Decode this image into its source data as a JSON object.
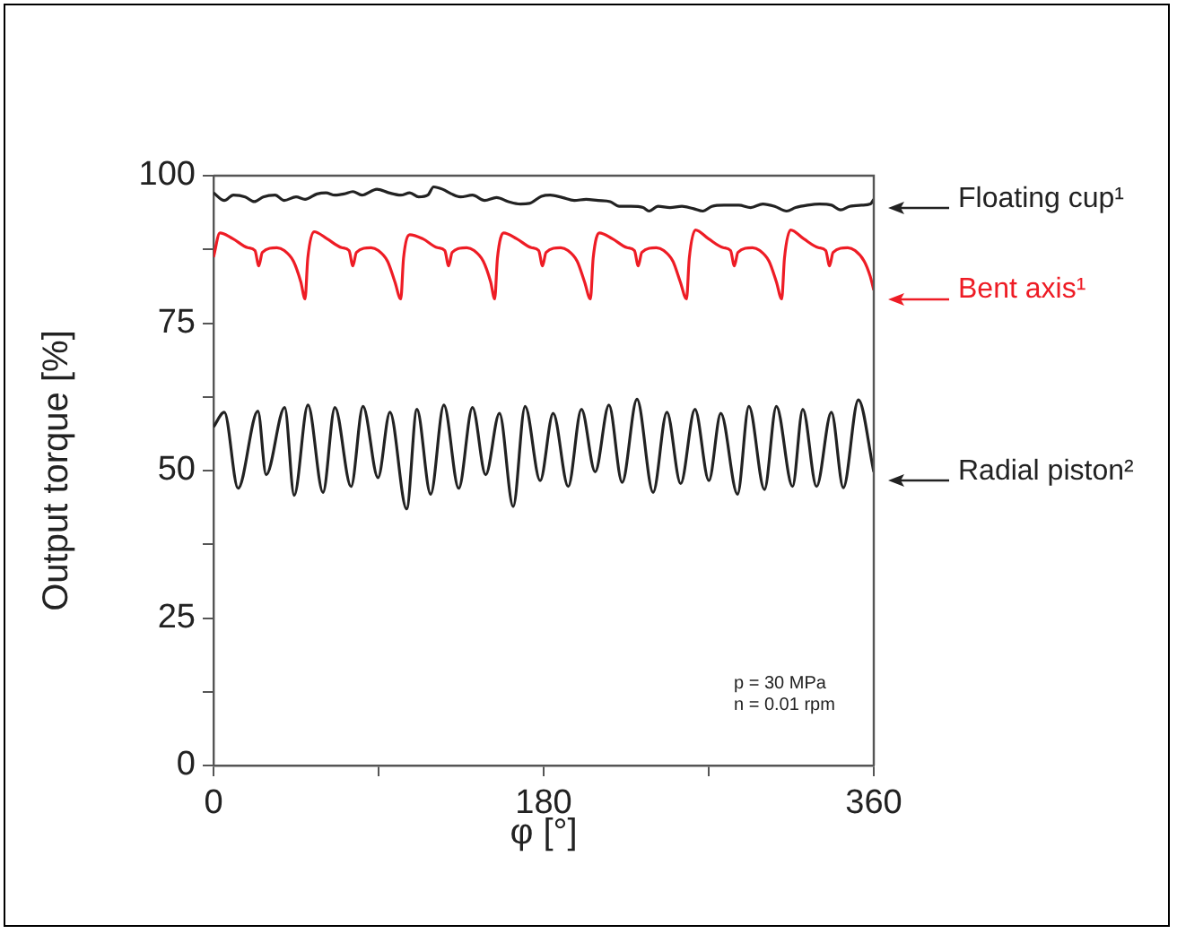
{
  "chart_data": {
    "type": "line",
    "xlabel": "φ [°]",
    "ylabel": "Output torque [%]",
    "xlim": [
      0,
      360
    ],
    "xticks": [
      0,
      {
        "value": 90,
        "label": null
      },
      180,
      {
        "value": 270,
        "label": null
      },
      360
    ],
    "ylim": [
      0,
      100
    ],
    "yticks": [
      0,
      {
        "value": 12.5,
        "label": null
      },
      25,
      {
        "value": 37.5,
        "label": null
      },
      50,
      {
        "value": 62.5,
        "label": null
      },
      75,
      {
        "value": 87.5,
        "label": null
      },
      100
    ],
    "marker": "none",
    "line_style": "solid",
    "legend": "right",
    "annotations": [
      "p = 30 MPa",
      "n = 0.01 rpm"
    ],
    "series": [
      {
        "name": "Floating cup¹",
        "color": "#222222",
        "x": [
          0,
          5.9,
          10.8,
          17.3,
          22.2,
          27.1,
          33.6,
          38.5,
          45.0,
          49.9,
          56.4,
          61.3,
          66.2,
          71.1,
          76.0,
          80.9,
          89.1,
          95.6,
          102.1,
          107.0,
          111.9,
          116.8,
          120.0,
          124.9,
          129.8,
          134.7,
          141.2,
          147.8,
          154.3,
          160.8,
          167.3,
          172.2,
          178.8,
          183.6,
          190.2,
          196.7,
          203.2,
          209.7,
          216.3,
          221.2,
          227.7,
          234.2,
          237.5,
          242.4,
          248.9,
          255.4,
          261.9,
          266.8,
          271.7,
          278.3,
          286.4,
          292.9,
          299.5,
          306.0,
          312.5,
          317.4,
          323.9,
          330.4,
          337.0,
          341.9,
          346.8,
          353.3,
          358.2,
          360
        ],
        "values": [
          97.1,
          95.8,
          96.7,
          96.4,
          95.6,
          96.4,
          96.7,
          95.8,
          96.4,
          96.0,
          96.9,
          97.1,
          96.7,
          96.9,
          97.3,
          96.7,
          97.7,
          97.1,
          96.7,
          97.1,
          96.4,
          96.7,
          98.1,
          97.7,
          96.9,
          96.4,
          96.7,
          95.8,
          96.3,
          95.6,
          95.2,
          95.3,
          96.5,
          96.7,
          96.3,
          95.8,
          96.0,
          95.8,
          95.6,
          94.8,
          94.8,
          94.6,
          94.0,
          94.8,
          94.6,
          94.8,
          94.4,
          94.0,
          94.8,
          95.0,
          95.0,
          94.6,
          95.2,
          94.8,
          94.0,
          94.6,
          95.0,
          95.2,
          95.0,
          94.2,
          94.8,
          95.0,
          95.2,
          96.0
        ]
      },
      {
        "name": "Bent axis¹",
        "color": "#ee1c25",
        "x": [
          0,
          3.5,
          10.6,
          18.6,
          22.6,
          24.7,
          26.6,
          34.6,
          38.6,
          43.6,
          47.6,
          49.9,
          51.4,
          54.8,
          61.9,
          69.9,
          73.9,
          76.0,
          77.9,
          85.9,
          89.9,
          94.9,
          98.9,
          102.1,
          103.6,
          107.0,
          114.1,
          122.1,
          126.1,
          128.2,
          130.1,
          138.1,
          142.1,
          147.1,
          151.1,
          153.3,
          154.8,
          158.2,
          165.3,
          173.3,
          177.3,
          179.4,
          181.3,
          189.3,
          193.3,
          198.3,
          202.3,
          205.5,
          207.0,
          210.4,
          217.5,
          225.5,
          229.5,
          231.6,
          233.5,
          241.5,
          245.5,
          250.5,
          254.5,
          257.9,
          259.4,
          262.8,
          269.9,
          277.9,
          281.9,
          284.0,
          285.9,
          293.9,
          297.9,
          302.9,
          306.9,
          309.8,
          311.3,
          314.7,
          321.8,
          329.8,
          333.8,
          335.9,
          337.8,
          345.8,
          349.8,
          354.8,
          358,
          360
        ],
        "values": [
          86.2,
          90.3,
          89.3,
          87.8,
          87.3,
          84.7,
          87,
          87.8,
          87.3,
          85.5,
          82,
          79.1,
          86,
          90.5,
          89.3,
          87.8,
          87.3,
          84.7,
          87,
          87.8,
          87.3,
          85.5,
          82,
          79.1,
          86,
          90,
          89.3,
          87.8,
          87.3,
          84.7,
          87,
          87.8,
          87.3,
          85.5,
          82,
          79.1,
          86,
          90.3,
          89.3,
          87.8,
          87.3,
          84.7,
          87,
          87.8,
          87.3,
          85.5,
          82,
          79.1,
          86,
          90.3,
          89.3,
          87.8,
          87.3,
          84.7,
          87,
          87.8,
          87.3,
          85.5,
          82,
          79.1,
          86,
          90.8,
          89.3,
          87.8,
          87.3,
          84.7,
          87,
          87.8,
          87.3,
          85.5,
          82,
          79.1,
          86,
          90.8,
          89.3,
          87.8,
          87.3,
          84.7,
          87,
          87.8,
          87.3,
          85.5,
          83,
          80.6
        ]
      },
      {
        "name": "Radial piston²",
        "color": "#222222",
        "x": [
          0,
          5.9,
          13.4,
          24.2,
          28.7,
          38.8,
          44.0,
          51.5,
          59.7,
          66.2,
          75.0,
          81.5,
          89.7,
          96.2,
          105.3,
          110.9,
          118.4,
          125.6,
          133.7,
          141.2,
          148.4,
          155.9,
          163.4,
          169.9,
          178.1,
          185.2,
          193.4,
          200.6,
          208.1,
          215.6,
          222.8,
          230.9,
          239.7,
          247.2,
          254.7,
          262.5,
          270.1,
          276.6,
          285.7,
          291.9,
          300.4,
          306.9,
          315.7,
          321.3,
          328.8,
          336.9,
          343.4,
          351.6,
          360
        ],
        "values": [
          57.4,
          59.9,
          47.0,
          60.1,
          49.3,
          60.7,
          45.8,
          61.1,
          46.3,
          60.7,
          47.3,
          60.9,
          48.8,
          59.9,
          43.5,
          60.4,
          46.0,
          61.1,
          47.0,
          60.7,
          49.3,
          59.7,
          43.9,
          60.9,
          48.3,
          59.7,
          47.3,
          60.4,
          49.8,
          61.1,
          48.0,
          62.1,
          46.3,
          59.9,
          47.8,
          60.4,
          48.3,
          59.7,
          46.0,
          60.9,
          46.8,
          60.9,
          47.3,
          60.4,
          47.3,
          59.9,
          47.1,
          62.0,
          49.8
        ]
      }
    ]
  }
}
